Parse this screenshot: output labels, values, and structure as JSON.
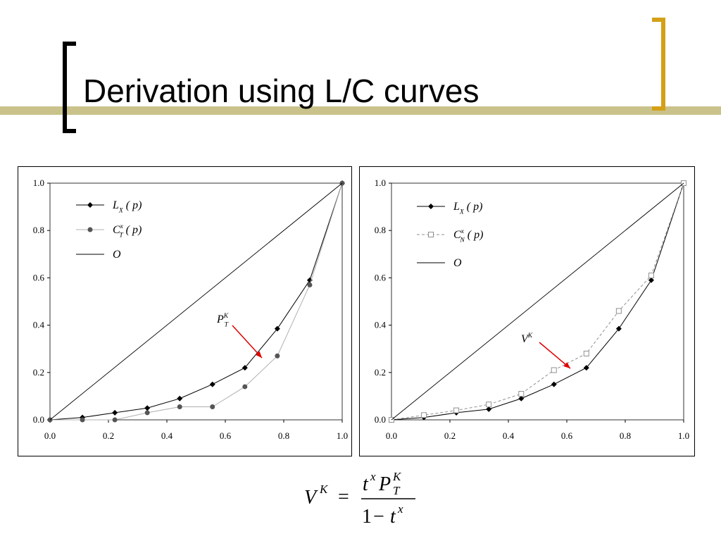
{
  "slide": {
    "title": "Derivation using L/C curves",
    "accent_color": "#C9C28A",
    "bracket_color": "#D4A017"
  },
  "charts_meta": {
    "x_ticks": [
      "0.0",
      "0.2",
      "0.4",
      "0.6",
      "0.8",
      "1.0"
    ],
    "y_ticks": [
      "0.0",
      "0.2",
      "0.4",
      "0.6",
      "0.8",
      "1.0"
    ]
  },
  "chart_data": [
    {
      "type": "line",
      "xlim": [
        0,
        1
      ],
      "ylim": [
        0,
        1
      ],
      "grid": false,
      "legend_position": "top-left",
      "series": [
        {
          "name": "L_X(p)",
          "marker": "diamond",
          "color": "#000000",
          "x": [
            0,
            0.111,
            0.222,
            0.333,
            0.444,
            0.556,
            0.667,
            0.778,
            0.889,
            1.0
          ],
          "y": [
            0,
            0.01,
            0.03,
            0.05,
            0.09,
            0.15,
            0.22,
            0.385,
            0.59,
            1.0
          ]
        },
        {
          "name": "C_T^x(p)",
          "marker": "circle",
          "color": "#b0b0b0",
          "x": [
            0,
            0.111,
            0.222,
            0.333,
            0.444,
            0.556,
            0.667,
            0.778,
            0.889,
            1.0
          ],
          "y": [
            0,
            0.0,
            0.0,
            0.03,
            0.055,
            0.055,
            0.14,
            0.27,
            0.57,
            1.0
          ]
        },
        {
          "name": "O",
          "marker": "none",
          "color": "#000000",
          "x": [
            0,
            1
          ],
          "y": [
            0,
            1
          ]
        }
      ],
      "legend": [
        {
          "main": "L",
          "sub": "X",
          "sup": "",
          "arg": "( p)"
        },
        {
          "main": "C",
          "sub": "T",
          "sup": "x",
          "arg": "( p)"
        },
        {
          "main": "O",
          "sub": "",
          "sup": "",
          "arg": ""
        }
      ],
      "annotation": {
        "main": "P",
        "sub": "T",
        "sup": "K",
        "color": "#e00000"
      }
    },
    {
      "type": "line",
      "xlim": [
        0,
        1
      ],
      "ylim": [
        0,
        1
      ],
      "grid": false,
      "legend_position": "top-right",
      "series": [
        {
          "name": "L_X(p)",
          "marker": "diamond",
          "color": "#000000",
          "x": [
            0,
            0.111,
            0.222,
            0.333,
            0.444,
            0.556,
            0.667,
            0.778,
            0.889,
            1.0
          ],
          "y": [
            0,
            0.01,
            0.03,
            0.045,
            0.09,
            0.15,
            0.22,
            0.385,
            0.59,
            1.0
          ]
        },
        {
          "name": "C_N^x(p)",
          "marker": "square-open",
          "color": "#909090",
          "dashed": true,
          "x": [
            0,
            0.111,
            0.222,
            0.333,
            0.444,
            0.556,
            0.667,
            0.778,
            0.889,
            1.0
          ],
          "y": [
            0,
            0.02,
            0.04,
            0.065,
            0.11,
            0.21,
            0.28,
            0.46,
            0.61,
            1.0
          ]
        },
        {
          "name": "O",
          "marker": "none",
          "color": "#000000",
          "x": [
            0,
            1
          ],
          "y": [
            0,
            1
          ]
        }
      ],
      "legend": [
        {
          "main": "L",
          "sub": "X",
          "sup": "",
          "arg": "( p)"
        },
        {
          "main": "C",
          "sub": "N",
          "sup": "x",
          "arg": "( p)"
        },
        {
          "main": "O",
          "sub": "",
          "sup": "",
          "arg": ""
        }
      ],
      "annotation": {
        "main": "V",
        "sub": "",
        "sup": "K",
        "color": "#e00000"
      }
    }
  ],
  "formula": {
    "lhs_main": "V",
    "lhs_sup": "K",
    "equals": "=",
    "num_t": "t",
    "num_t_sup": "x",
    "num_P": "P",
    "num_P_sub": "T",
    "num_P_sup": "K",
    "den_one": "1",
    "den_minus": "−",
    "den_t": "t",
    "den_t_sup": "x"
  }
}
